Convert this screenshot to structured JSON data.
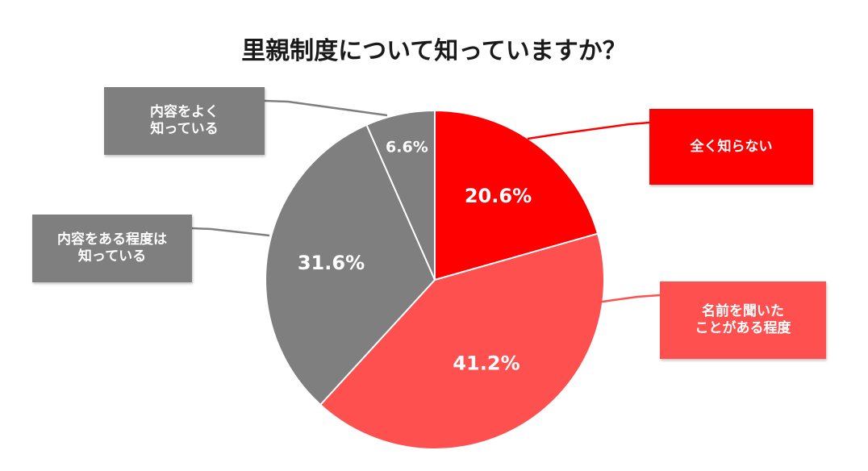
{
  "chart_data": {
    "type": "pie",
    "title": "里親制度について知っていますか？",
    "slices": [
      {
        "label": "全く知らない",
        "value": 20.6,
        "display": "20.6%",
        "color": "#ff0000"
      },
      {
        "label": "名前を聞いた\nことがある程度",
        "value": 41.2,
        "display": "41.2%",
        "color": "#ff5050"
      },
      {
        "label": "内容をある程度は\n知っている",
        "value": 31.6,
        "display": "31.6%",
        "color": "#7f7f7f"
      },
      {
        "label": "内容をよく\n知っている",
        "value": 6.6,
        "display": "6.6%",
        "color": "#7f7f7f"
      }
    ],
    "start": "12 o'clock",
    "direction": "clockwise",
    "legend": "callout boxes"
  }
}
